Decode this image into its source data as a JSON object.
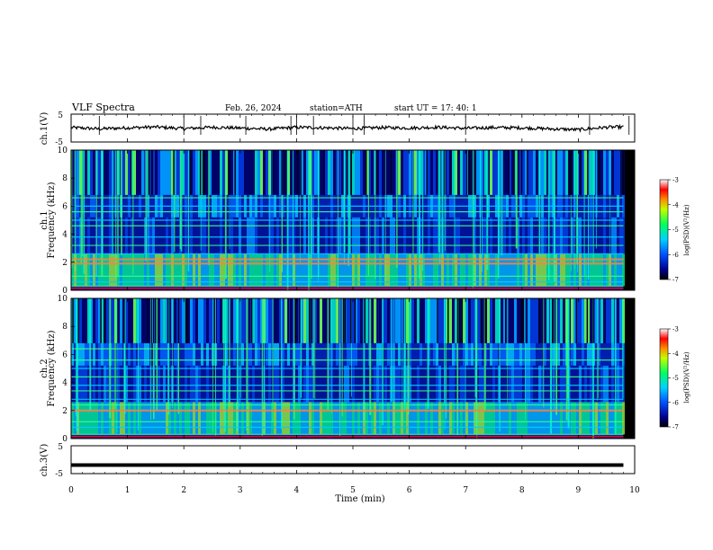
{
  "header": {
    "title": "VLF  Spectra",
    "date": "Feb. 26, 2024",
    "station": "station=ATH",
    "start": "start  UT  =   17: 40: 1"
  },
  "colors": {
    "spectrogram_low": "#000080",
    "spectrogram_mid": "#00c0ff",
    "spectrogram_high": "#ff3000",
    "trace": "#000000"
  },
  "chart_data": [
    {
      "type": "line",
      "panel": "ch1-waveform",
      "ylabel": "ch.1(V)",
      "ylim": [
        -5,
        5
      ],
      "y_ticks": [
        "5",
        "-5"
      ],
      "xlim": [
        0,
        10
      ],
      "description_series": [
        {
          "values_x_min": [
            0,
            0.5,
            1,
            1.5,
            2,
            2.5,
            3,
            3.5,
            4,
            4.5,
            5,
            5.5,
            6,
            6.5,
            7,
            7.5,
            8,
            8.5,
            9,
            9.5,
            9.8
          ],
          "values_y": [
            0.2,
            -0.3,
            0.1,
            0.4,
            -0.2,
            0.3,
            0.0,
            -0.4,
            0.3,
            0.1,
            -0.2,
            0.2,
            0.0,
            0.3,
            -0.1,
            0.2,
            0.1,
            -0.3,
            -0.6,
            0.3,
            0.4
          ]
        }
      ]
    },
    {
      "type": "heatmap",
      "panel": "ch1-spectrogram",
      "ylabel": "ch.1 Frequency (kHz)",
      "ylim": [
        0,
        10
      ],
      "y_ticks": [
        "0",
        "2",
        "4",
        "6",
        "8",
        "10"
      ],
      "xlim": [
        0,
        10
      ],
      "colorbar": {
        "label": "log(PSD)(V²/Hz)",
        "ticks": [
          "-3",
          "-4",
          "-5",
          "-6",
          "-7"
        ],
        "range": [
          -7,
          -3
        ]
      },
      "bands_khz": [
        0.3,
        0.6,
        1.0,
        1.9,
        2.2,
        2.6,
        3.2,
        3.8,
        4.6,
        5.0,
        5.6,
        6.0,
        6.6
      ]
    },
    {
      "type": "heatmap",
      "panel": "ch2-spectrogram",
      "ylabel": "ch.2 Frequency (kHz)",
      "ylim": [
        0,
        10
      ],
      "y_ticks": [
        "0",
        "2",
        "4",
        "6",
        "8",
        "10"
      ],
      "xlim": [
        0,
        10
      ],
      "colorbar": {
        "label": "log(PSD)(V²/Hz)",
        "ticks": [
          "-3",
          "-4",
          "-5",
          "-6",
          "-7"
        ],
        "range": [
          -7,
          -3
        ]
      },
      "bands_khz": [
        0.3,
        0.8,
        1.2,
        2.0,
        2.4,
        2.8,
        3.4,
        3.8,
        4.4,
        5.0,
        5.6,
        6.4
      ]
    },
    {
      "type": "line",
      "panel": "ch3-waveform",
      "ylabel": "ch.3(V)",
      "ylim": [
        -5,
        5
      ],
      "y_ticks": [
        "5",
        "-5"
      ],
      "xlim": [
        0,
        10
      ],
      "description_series": [
        {
          "values_x_min": [
            0,
            9.8
          ],
          "values_y": [
            -2,
            -2
          ]
        }
      ]
    }
  ],
  "x_axis": {
    "label": "Time  (min)",
    "ticks": [
      "0",
      "1",
      "2",
      "3",
      "4",
      "5",
      "6",
      "7",
      "8",
      "9",
      "10"
    ]
  }
}
